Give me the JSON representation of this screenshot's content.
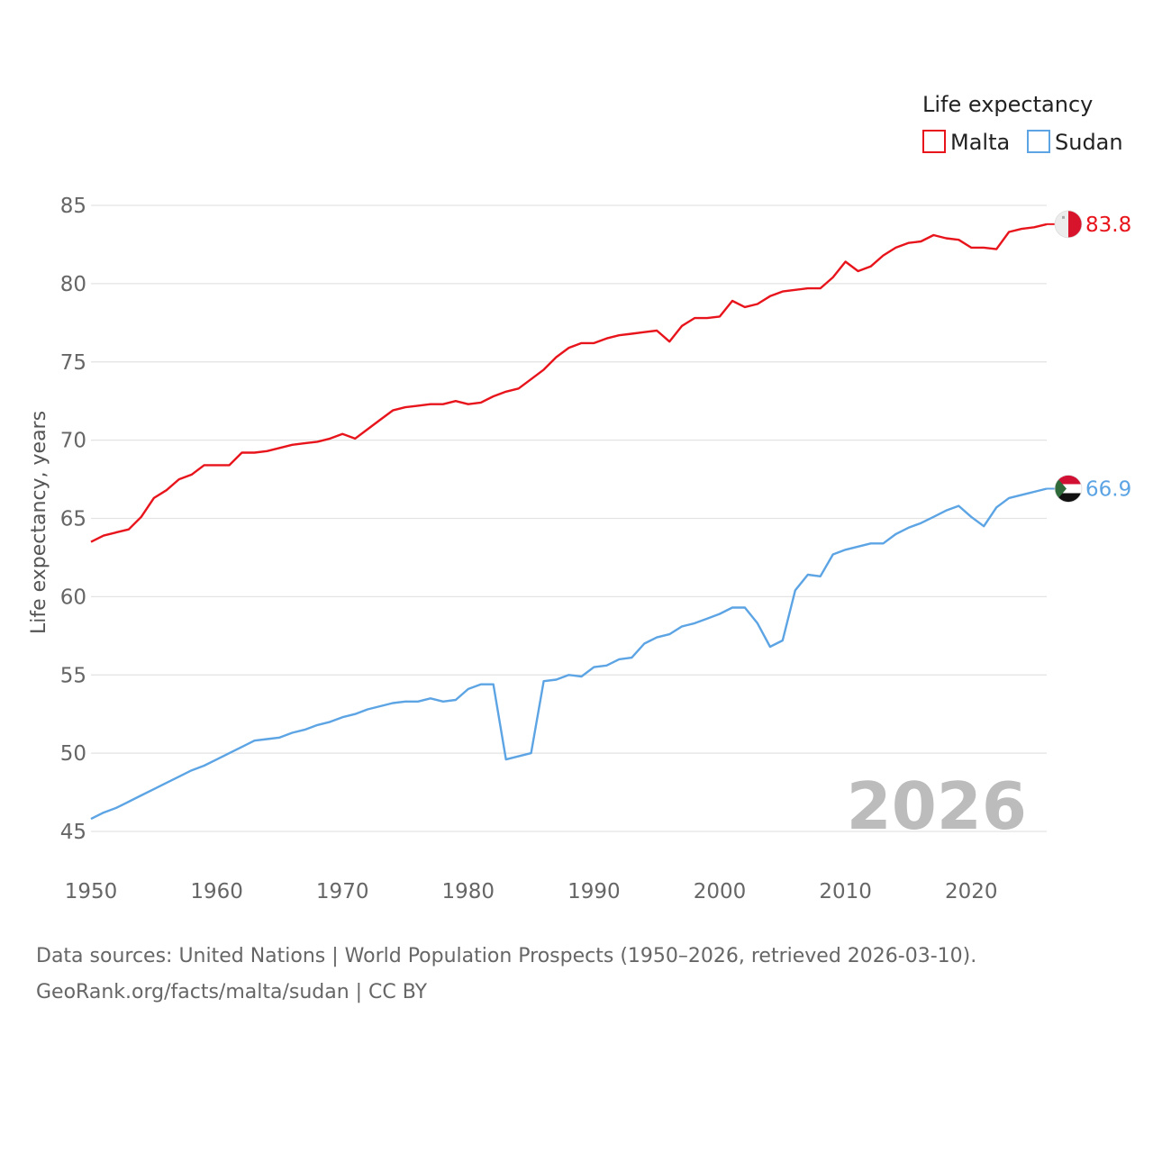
{
  "chart_data": {
    "type": "line",
    "title": "Life expectancy",
    "xlabel": "",
    "ylabel": "Life expectancy, years",
    "xlim": [
      1950,
      2026
    ],
    "ylim": [
      45,
      85
    ],
    "x_ticks": [
      1950,
      1960,
      1970,
      1980,
      1990,
      2000,
      2010,
      2020
    ],
    "y_ticks": [
      45,
      50,
      55,
      60,
      65,
      70,
      75,
      80,
      85
    ],
    "grid": true,
    "legend_position": "top-right",
    "current_year_label": "2026",
    "x": [
      1950,
      1951,
      1952,
      1953,
      1954,
      1955,
      1956,
      1957,
      1958,
      1959,
      1960,
      1961,
      1962,
      1963,
      1964,
      1965,
      1966,
      1967,
      1968,
      1969,
      1970,
      1971,
      1972,
      1973,
      1974,
      1975,
      1976,
      1977,
      1978,
      1979,
      1980,
      1981,
      1982,
      1983,
      1984,
      1985,
      1986,
      1987,
      1988,
      1989,
      1990,
      1991,
      1992,
      1993,
      1994,
      1995,
      1996,
      1997,
      1998,
      1999,
      2000,
      2001,
      2002,
      2003,
      2004,
      2005,
      2006,
      2007,
      2008,
      2009,
      2010,
      2011,
      2012,
      2013,
      2014,
      2015,
      2016,
      2017,
      2018,
      2019,
      2020,
      2021,
      2022,
      2023,
      2024,
      2025,
      2026
    ],
    "series": [
      {
        "name": "Malta",
        "color": "#e8141c",
        "end_label": "83.8",
        "flag": "malta-flag",
        "values": [
          63.5,
          63.9,
          64.1,
          64.3,
          65.1,
          66.3,
          66.8,
          67.5,
          67.8,
          68.4,
          68.4,
          68.4,
          69.2,
          69.2,
          69.3,
          69.5,
          69.7,
          69.8,
          69.9,
          70.1,
          70.4,
          70.1,
          70.7,
          71.3,
          71.9,
          72.1,
          72.2,
          72.3,
          72.3,
          72.5,
          72.3,
          72.4,
          72.8,
          73.1,
          73.3,
          73.9,
          74.5,
          75.3,
          75.9,
          76.2,
          76.2,
          76.5,
          76.7,
          76.8,
          76.9,
          77.0,
          76.3,
          77.3,
          77.8,
          77.8,
          77.9,
          78.9,
          78.5,
          78.7,
          79.2,
          79.5,
          79.6,
          79.7,
          79.7,
          80.4,
          81.4,
          80.8,
          81.1,
          81.8,
          82.3,
          82.6,
          82.7,
          83.1,
          82.9,
          82.8,
          82.3,
          82.3,
          82.2,
          83.3,
          83.5,
          83.6,
          83.8
        ]
      },
      {
        "name": "Sudan",
        "color": "#5ca4e4",
        "end_label": "66.9",
        "flag": "sudan-flag",
        "values": [
          45.8,
          46.2,
          46.5,
          46.9,
          47.3,
          47.7,
          48.1,
          48.5,
          48.9,
          49.2,
          49.6,
          50.0,
          50.4,
          50.8,
          50.9,
          51.0,
          51.3,
          51.5,
          51.8,
          52.0,
          52.3,
          52.5,
          52.8,
          53.0,
          53.2,
          53.3,
          53.3,
          53.5,
          53.3,
          53.4,
          54.1,
          54.4,
          54.4,
          49.6,
          49.8,
          50.0,
          54.6,
          54.7,
          55.0,
          54.9,
          55.5,
          55.6,
          56.0,
          56.1,
          57.0,
          57.4,
          57.6,
          58.1,
          58.3,
          58.6,
          58.9,
          59.3,
          59.3,
          58.3,
          56.8,
          57.2,
          60.4,
          61.4,
          61.3,
          62.7,
          63.0,
          63.2,
          63.4,
          63.4,
          64.0,
          64.4,
          64.7,
          65.1,
          65.5,
          65.8,
          65.1,
          64.5,
          65.7,
          66.3,
          66.5,
          66.7,
          66.9
        ]
      }
    ]
  },
  "legend": {
    "title": "Life expectancy",
    "items": [
      "Malta",
      "Sudan"
    ]
  },
  "footer": {
    "line1": "Data sources: United Nations | World Population Prospects (1950–2026, retrieved 2026-03-10).",
    "line2": "GeoRank.org/facts/malta/sudan | CC BY"
  }
}
